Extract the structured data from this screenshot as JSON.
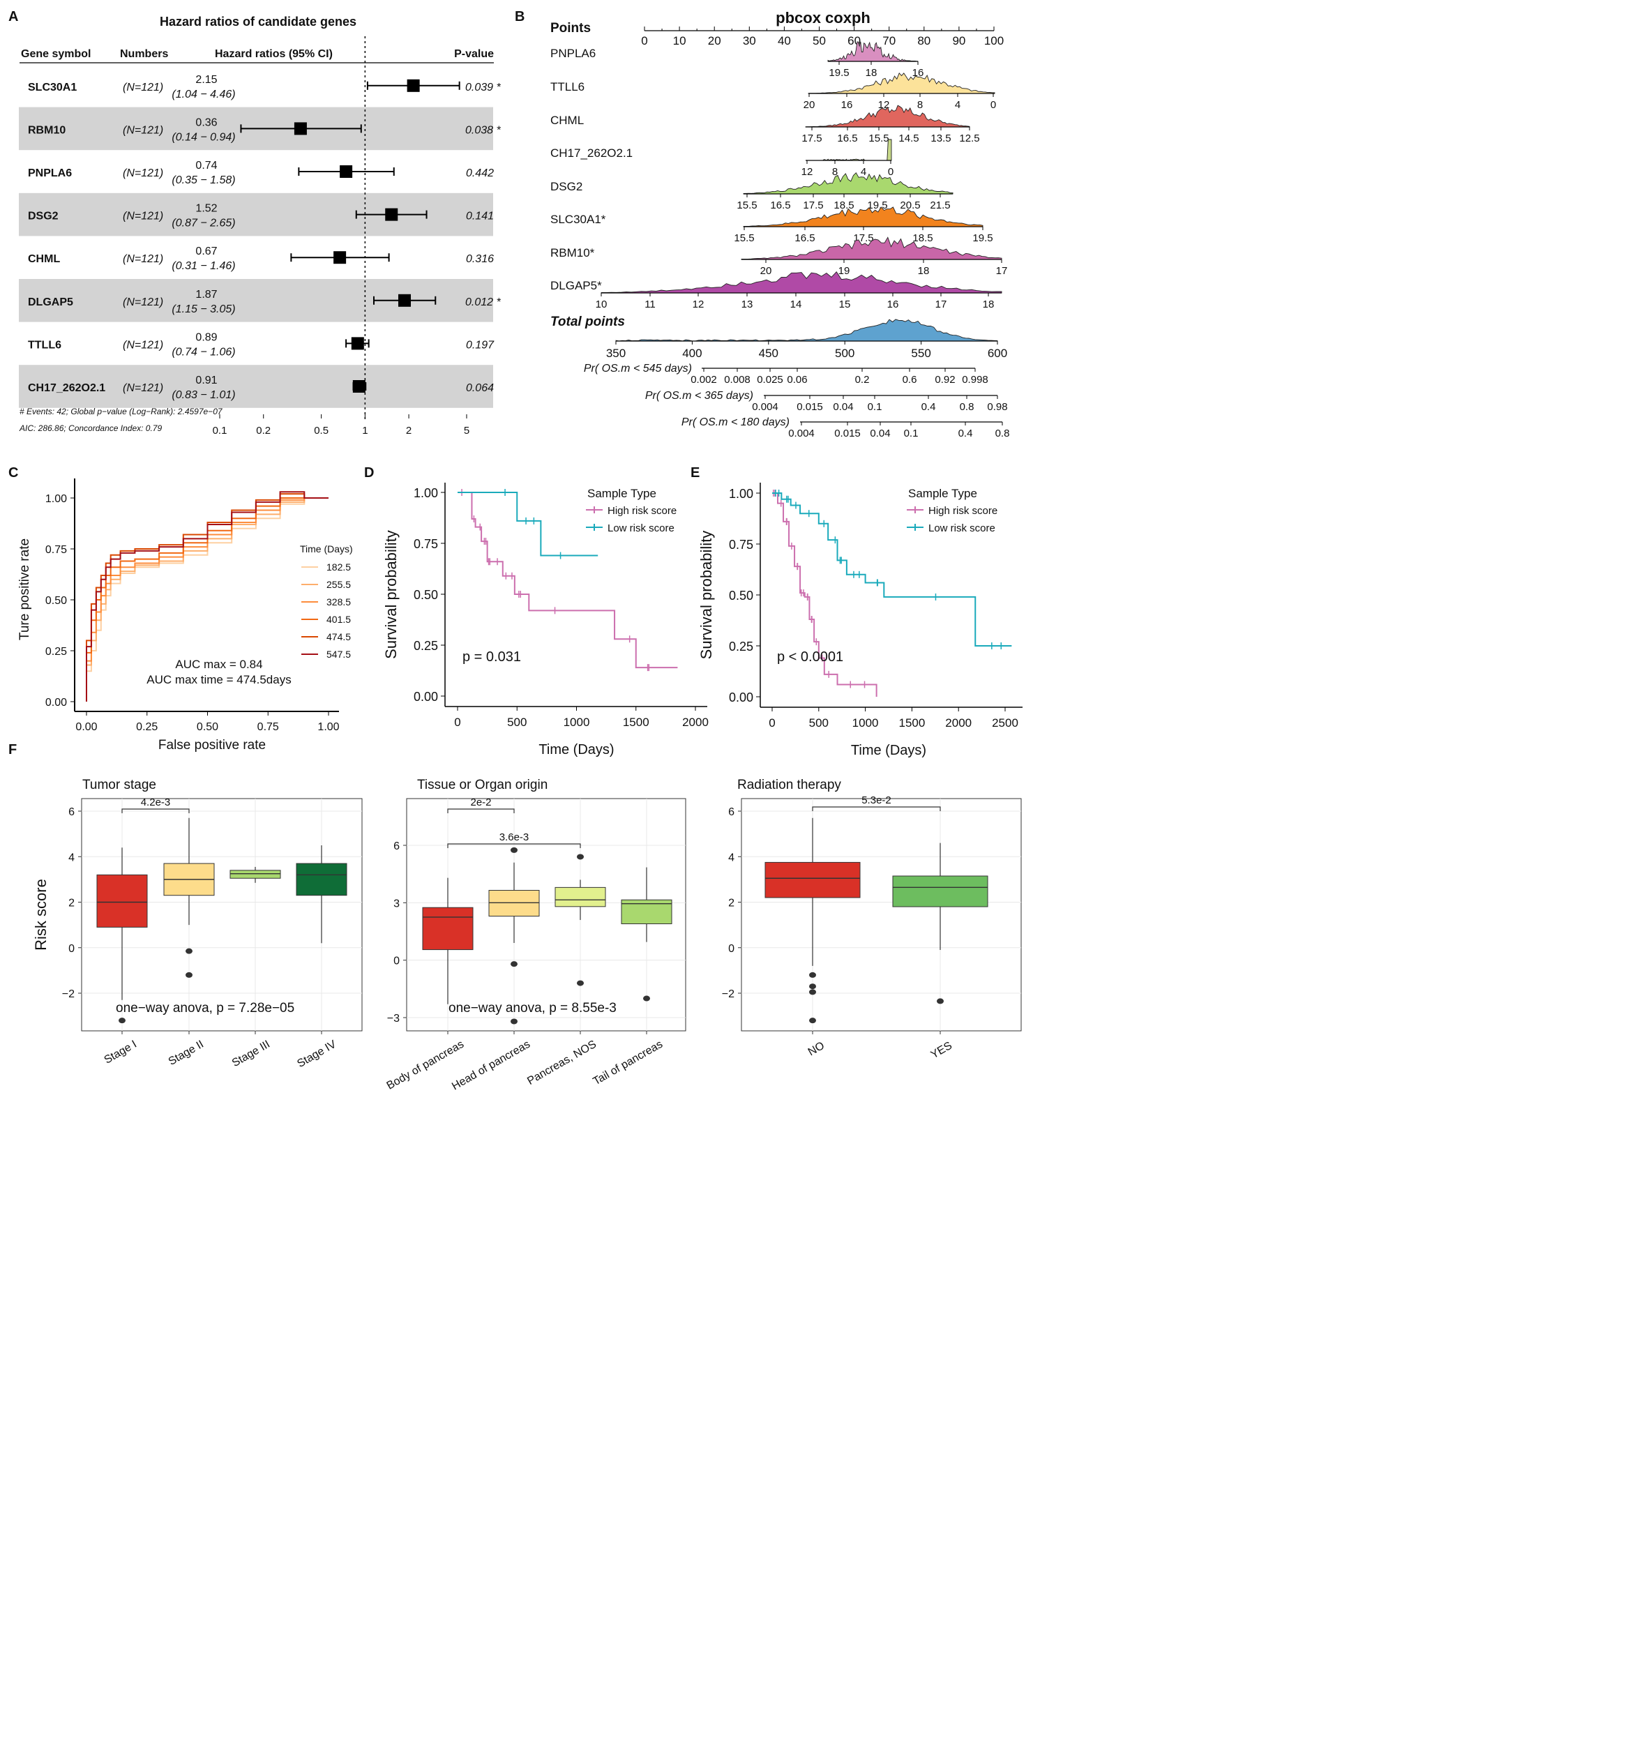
{
  "panel_labels": {
    "A": "A",
    "B": "B",
    "C": "C",
    "D": "D",
    "E": "E",
    "F": "F"
  },
  "colors": {
    "gray_band": "#d3d3d3",
    "pink": "#cc6fae",
    "teal": "#1aaabb",
    "box_red": "#d93127",
    "box_yellow": "#fddc8b",
    "box_light_green": "#a9d86e",
    "box_dark_green": "#0f6d37",
    "box_pale_green": "#e2f08e",
    "box_green": "#6dbd5f",
    "total_blue": "#5ea2cf"
  },
  "chart_data": [
    {
      "panel": "A",
      "type": "forest",
      "title": "Hazard ratios of candidate genes",
      "headers": {
        "gene": "Gene symbol",
        "numbers": "Numbers",
        "hr": "Hazard ratios (95% CI)",
        "p": "P-value"
      },
      "rows": [
        {
          "gene": "SLC30A1",
          "n": "(N=121)",
          "hr": 2.15,
          "hr_text": "2.15",
          "ci": [
            1.04,
            4.46
          ],
          "ci_text": "(1.04 − 4.46)",
          "p": "0.039 *",
          "shaded": false
        },
        {
          "gene": "RBM10",
          "n": "(N=121)",
          "hr": 0.36,
          "hr_text": "0.36",
          "ci": [
            0.14,
            0.94
          ],
          "ci_text": "(0.14 − 0.94)",
          "p": "0.038 *",
          "shaded": true
        },
        {
          "gene": "PNPLA6",
          "n": "(N=121)",
          "hr": 0.74,
          "hr_text": "0.74",
          "ci": [
            0.35,
            1.58
          ],
          "ci_text": "(0.35 − 1.58)",
          "p": "0.442",
          "shaded": false
        },
        {
          "gene": "DSG2",
          "n": "(N=121)",
          "hr": 1.52,
          "hr_text": "1.52",
          "ci": [
            0.87,
            2.65
          ],
          "ci_text": "(0.87 − 2.65)",
          "p": "0.141",
          "shaded": true
        },
        {
          "gene": "CHML",
          "n": "(N=121)",
          "hr": 0.67,
          "hr_text": "0.67",
          "ci": [
            0.31,
            1.46
          ],
          "ci_text": "(0.31 − 1.46)",
          "p": "0.316",
          "shaded": false
        },
        {
          "gene": "DLGAP5",
          "n": "(N=121)",
          "hr": 1.87,
          "hr_text": "1.87",
          "ci": [
            1.15,
            3.05
          ],
          "ci_text": "(1.15 − 3.05)",
          "p": "0.012 *",
          "shaded": true
        },
        {
          "gene": "TTLL6",
          "n": "(N=121)",
          "hr": 0.89,
          "hr_text": "0.89",
          "ci": [
            0.74,
            1.06
          ],
          "ci_text": "(0.74 − 1.06)",
          "p": "0.197",
          "shaded": false
        },
        {
          "gene": "CH17_262O2.1",
          "n": "(N=121)",
          "hr": 0.91,
          "hr_text": "0.91",
          "ci": [
            0.83,
            1.01
          ],
          "ci_text": "(0.83 − 1.01)",
          "p": "0.064",
          "shaded": true
        }
      ],
      "xticks": [
        0.1,
        0.2,
        0.5,
        1,
        2,
        5
      ],
      "xtick_labels": [
        "0.1",
        "0.2",
        "0.5",
        "1",
        "2",
        "5"
      ],
      "footer1": "# Events: 42; Global p−value (Log−Rank): 2.4597e−07",
      "footer2": "AIC: 286.86; Concordance Index: 0.79"
    },
    {
      "panel": "B",
      "type": "nomogram",
      "title": "pbcox coxph",
      "points_label": "Points",
      "points_ticks": [
        0,
        10,
        20,
        30,
        40,
        50,
        60,
        70,
        80,
        90,
        100
      ],
      "rows": [
        {
          "label": "PNPLA6",
          "color": "#d98fc0",
          "ticks": [
            "19.5",
            "18",
            "16"
          ]
        },
        {
          "label": "TTLL6",
          "color": "#fce29a",
          "ticks": [
            "20",
            "16",
            "12",
            "8",
            "4",
            "0"
          ]
        },
        {
          "label": "CHML",
          "color": "#e0665e",
          "ticks": [
            "17.5",
            "16.5",
            "15.5",
            "14.5",
            "13.5",
            "12.5"
          ]
        },
        {
          "label": "CH17_262O2.1",
          "color": "#c8d98a",
          "ticks": [
            "12",
            "8",
            "4",
            "0"
          ]
        },
        {
          "label": "DSG2",
          "color": "#a9d86e",
          "ticks": [
            "15.5",
            "16.5",
            "17.5",
            "18.5",
            "19.5",
            "20.5",
            "21.5"
          ]
        },
        {
          "label": "SLC30A1*",
          "color": "#f2831e",
          "ticks": [
            "15.5",
            "16.5",
            "17.5",
            "18.5",
            "19.5"
          ]
        },
        {
          "label": "RBM10*",
          "color": "#c966a8",
          "ticks": [
            "20",
            "19",
            "18",
            "17"
          ]
        },
        {
          "label": "DLGAP5*",
          "color": "#b04aa6",
          "ticks": [
            "10",
            "11",
            "12",
            "13",
            "14",
            "15",
            "16",
            "17",
            "18"
          ]
        }
      ],
      "total_label": "Total points",
      "total_ticks": [
        350,
        400,
        450,
        500,
        550,
        600
      ],
      "prob_rows": [
        {
          "label": "Pr( OS.m < 545 days)",
          "ticks": [
            "0.002",
            "0.008",
            "0.025",
            "0.06",
            "0.2",
            "0.6",
            "0.92",
            "0.998"
          ]
        },
        {
          "label": "Pr( OS.m < 365 days)",
          "ticks": [
            "0.004",
            "0.015",
            "0.04",
            "0.1",
            "0.4",
            "0.8",
            "0.98"
          ]
        },
        {
          "label": "Pr( OS.m < 180 days)",
          "ticks": [
            "0.004",
            "0.015",
            "0.04",
            "0.1",
            "0.4",
            "0.8"
          ]
        }
      ]
    },
    {
      "panel": "C",
      "type": "line",
      "xlabel": "False positive rate",
      "ylabel": "Ture positive rate",
      "xlim": [
        0,
        1
      ],
      "ylim": [
        0,
        1
      ],
      "xticks": [
        "0.00",
        "0.25",
        "0.50",
        "0.75",
        "1.00"
      ],
      "yticks": [
        "0.00",
        "0.25",
        "0.50",
        "0.75",
        "1.00"
      ],
      "legend_title": "Time (Days)",
      "series": [
        {
          "name": "182.5",
          "color": "#fdd0a2",
          "x": [
            0,
            0.02,
            0.04,
            0.06,
            0.08,
            0.1,
            0.14,
            0.2,
            0.3,
            0.4,
            0.5,
            0.6,
            0.7,
            0.8,
            0.9,
            1
          ],
          "y": [
            0,
            0.15,
            0.25,
            0.35,
            0.45,
            0.52,
            0.58,
            0.63,
            0.66,
            0.68,
            0.72,
            0.78,
            0.85,
            0.9,
            0.97,
            1
          ]
        },
        {
          "name": "255.5",
          "color": "#fdae6b",
          "x": [
            0,
            0.02,
            0.04,
            0.06,
            0.08,
            0.1,
            0.14,
            0.2,
            0.3,
            0.4,
            0.5,
            0.6,
            0.7,
            0.8,
            0.9,
            1
          ],
          "y": [
            0,
            0.18,
            0.3,
            0.4,
            0.48,
            0.55,
            0.6,
            0.64,
            0.67,
            0.69,
            0.74,
            0.8,
            0.87,
            0.92,
            0.98,
            1
          ]
        },
        {
          "name": "328.5",
          "color": "#fd8d3c",
          "x": [
            0,
            0.02,
            0.04,
            0.06,
            0.08,
            0.1,
            0.14,
            0.2,
            0.3,
            0.4,
            0.5,
            0.6,
            0.7,
            0.8,
            0.9,
            1
          ],
          "y": [
            0,
            0.2,
            0.34,
            0.44,
            0.52,
            0.58,
            0.62,
            0.66,
            0.68,
            0.71,
            0.76,
            0.82,
            0.88,
            0.94,
            0.99,
            1
          ]
        },
        {
          "name": "401.5",
          "color": "#f16913",
          "x": [
            0,
            0.02,
            0.04,
            0.06,
            0.08,
            0.1,
            0.14,
            0.2,
            0.3,
            0.4,
            0.5,
            0.6,
            0.7,
            0.8,
            0.9,
            1
          ],
          "y": [
            0,
            0.24,
            0.4,
            0.5,
            0.56,
            0.62,
            0.66,
            0.69,
            0.7,
            0.73,
            0.78,
            0.84,
            0.9,
            0.96,
            1,
            1
          ]
        },
        {
          "name": "474.5",
          "color": "#d94801",
          "x": [
            0,
            0.02,
            0.04,
            0.06,
            0.08,
            0.1,
            0.14,
            0.2,
            0.3,
            0.4,
            0.5,
            0.6,
            0.7,
            0.8,
            0.9,
            1
          ],
          "y": [
            0,
            0.3,
            0.48,
            0.56,
            0.62,
            0.68,
            0.72,
            0.74,
            0.75,
            0.77,
            0.82,
            0.88,
            0.94,
            0.99,
            1.02,
            1
          ]
        },
        {
          "name": "547.5",
          "color": "#a50f15",
          "x": [
            0,
            0.02,
            0.04,
            0.06,
            0.08,
            0.1,
            0.14,
            0.2,
            0.3,
            0.4,
            0.5,
            0.6,
            0.7,
            0.8,
            0.9,
            1
          ],
          "y": [
            0,
            0.27,
            0.45,
            0.54,
            0.6,
            0.66,
            0.7,
            0.73,
            0.74,
            0.76,
            0.8,
            0.87,
            0.93,
            0.98,
            1.03,
            1
          ]
        }
      ],
      "annotation1": "AUC max = 0.84",
      "annotation2": "AUC max time = 474.5days"
    },
    {
      "panel": "D",
      "type": "line",
      "xlabel": "Time (Days)",
      "ylabel": "Survival probability",
      "xlim": [
        0,
        2000
      ],
      "ylim": [
        0,
        1
      ],
      "xticks": [
        "0",
        "500",
        "1000",
        "1500",
        "2000"
      ],
      "yticks": [
        "0.00",
        "0.25",
        "0.50",
        "0.75",
        "1.00"
      ],
      "legend_title": "Sample Type",
      "series": [
        {
          "name": "High risk score",
          "color": "#cc6fae",
          "x": [
            0,
            120,
            150,
            200,
            250,
            300,
            380,
            480,
            600,
            1320,
            1500,
            1850
          ],
          "y": [
            1,
            0.87,
            0.83,
            0.76,
            0.66,
            0.66,
            0.59,
            0.5,
            0.42,
            0.28,
            0.14,
            0.14
          ]
        },
        {
          "name": "Low risk score",
          "color": "#1aaabb",
          "x": [
            0,
            500,
            700,
            1180
          ],
          "y": [
            1,
            0.86,
            0.69,
            0.69
          ]
        }
      ],
      "annotation": "p = 0.031"
    },
    {
      "panel": "E",
      "type": "line",
      "xlabel": "Time (Days)",
      "ylabel": "Survival probability",
      "xlim": [
        0,
        2500
      ],
      "ylim": [
        0,
        1
      ],
      "xticks": [
        "0",
        "500",
        "1000",
        "1500",
        "2000",
        "2500"
      ],
      "yticks": [
        "0.00",
        "0.25",
        "0.50",
        "0.75",
        "1.00"
      ],
      "legend_title": "Sample Type",
      "series": [
        {
          "name": "High risk score",
          "color": "#cc6fae",
          "x": [
            0,
            60,
            120,
            180,
            240,
            300,
            350,
            400,
            450,
            500,
            560,
            700,
            1120
          ],
          "y": [
            1,
            0.95,
            0.86,
            0.74,
            0.64,
            0.51,
            0.49,
            0.38,
            0.27,
            0.19,
            0.11,
            0.06,
            0.0
          ]
        },
        {
          "name": "Low risk score",
          "color": "#1aaabb",
          "x": [
            0,
            100,
            200,
            300,
            500,
            600,
            700,
            800,
            1000,
            1200,
            2180,
            2570
          ],
          "y": [
            1,
            0.97,
            0.94,
            0.9,
            0.85,
            0.77,
            0.67,
            0.6,
            0.56,
            0.49,
            0.25,
            0.25
          ]
        }
      ],
      "annotation": "p < 0.0001"
    },
    {
      "panel": "F1",
      "type": "box",
      "title": "Tumor stage",
      "ylabel": "Risk score",
      "ylim": [
        -3.5,
        6.8
      ],
      "yticks": [
        -2,
        0,
        2,
        4,
        6
      ],
      "categories": [
        "Stage I",
        "Stage II",
        "Stage III",
        "Stage IV"
      ],
      "boxes": [
        {
          "min": -2.3,
          "q1": 0.9,
          "median": 2.0,
          "q3": 3.2,
          "max": 4.4,
          "outliers": [
            -3.2
          ],
          "color": "#d93127"
        },
        {
          "min": 1.0,
          "q1": 2.3,
          "median": 3.0,
          "q3": 3.7,
          "max": 5.7,
          "outliers": [
            -0.15,
            -1.2
          ],
          "color": "#fddc8b"
        },
        {
          "min": 2.85,
          "q1": 3.05,
          "median": 3.25,
          "q3": 3.4,
          "max": 3.55,
          "outliers": [],
          "color": "#a9d86e"
        },
        {
          "min": 0.2,
          "q1": 2.3,
          "median": 3.2,
          "q3": 3.7,
          "max": 4.5,
          "outliers": [],
          "color": "#0f6d37"
        }
      ],
      "bracket": {
        "from": "Stage I",
        "to": "Stage II",
        "label": "4.2e-3"
      },
      "annotation": "one−way anova, p = 7.28e−05"
    },
    {
      "panel": "F2",
      "type": "box",
      "title": "Tissue or Organ origin",
      "ylim": [
        -3.5,
        8.5
      ],
      "yticks": [
        -3,
        0,
        3,
        6
      ],
      "categories": [
        "Body of pancreas",
        "Head of pancreas",
        "Pancreas, NOS",
        "Tail of pancreas"
      ],
      "boxes": [
        {
          "min": -2.3,
          "q1": 0.55,
          "median": 2.25,
          "q3": 2.75,
          "max": 4.3,
          "outliers": [],
          "color": "#d93127"
        },
        {
          "min": 0.9,
          "q1": 2.3,
          "median": 3.0,
          "q3": 3.65,
          "max": 5.1,
          "outliers": [
            5.75,
            -0.2,
            -3.2
          ],
          "color": "#fddc8b"
        },
        {
          "min": 2.1,
          "q1": 2.8,
          "median": 3.15,
          "q3": 3.8,
          "max": 4.2,
          "outliers": [
            5.4,
            -1.2
          ],
          "color": "#e2f08e"
        },
        {
          "min": 0.95,
          "q1": 1.9,
          "median": 2.95,
          "q3": 3.15,
          "max": 4.85,
          "outliers": [
            -2.0
          ],
          "color": "#a9d86e"
        }
      ],
      "brackets": [
        {
          "from": "Body of pancreas",
          "to": "Head of pancreas",
          "label": "2e-2"
        },
        {
          "from": "Body of pancreas",
          "to": "Pancreas, NOS",
          "label": "3.6e-3"
        }
      ],
      "annotation": "one−way anova, p = 8.55e-3"
    },
    {
      "panel": "F3",
      "type": "box",
      "title": "Radiation therapy",
      "ylim": [
        -3.5,
        6.8
      ],
      "yticks": [
        -2,
        0,
        2,
        4,
        6
      ],
      "categories": [
        "NO",
        "YES"
      ],
      "boxes": [
        {
          "min": -0.8,
          "q1": 2.2,
          "median": 3.05,
          "q3": 3.75,
          "max": 5.7,
          "outliers": [
            -1.2,
            -1.7,
            -1.95,
            -3.2
          ],
          "color": "#d93127"
        },
        {
          "min": -0.1,
          "q1": 1.8,
          "median": 2.65,
          "q3": 3.15,
          "max": 4.6,
          "outliers": [
            -2.35
          ],
          "color": "#6dbd5f"
        }
      ],
      "bracket": {
        "from": "NO",
        "to": "YES",
        "label": "5.3e-2"
      }
    }
  ]
}
